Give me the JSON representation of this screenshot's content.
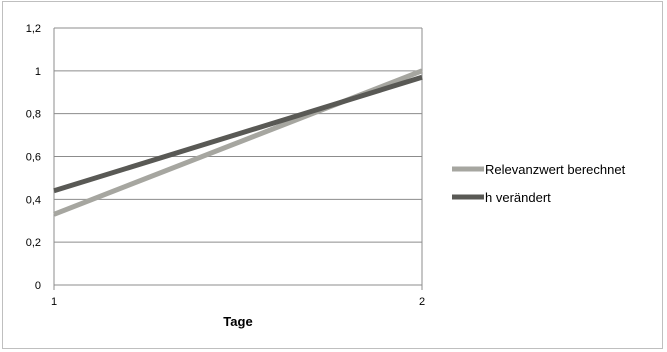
{
  "chart_data": {
    "type": "line",
    "x": [
      1,
      2
    ],
    "x_tick_labels": [
      "1",
      "2"
    ],
    "xlabel": "Tage",
    "ylabel": "",
    "ylim": [
      0,
      1.2
    ],
    "y_ticks": [
      0,
      0.2,
      0.4,
      0.6,
      0.8,
      1,
      1.2
    ],
    "y_tick_labels": [
      "0",
      "0,2",
      "0,4",
      "0,6",
      "0,8",
      "1",
      "1,2"
    ],
    "grid": "horizontal",
    "legend_position": "right",
    "series": [
      {
        "name": "Relevanzwert berechnet",
        "values": [
          0.33,
          1.0
        ],
        "color": "#a6a6a0"
      },
      {
        "name": "h verändert",
        "values": [
          0.44,
          0.97
        ],
        "color": "#595955"
      }
    ]
  }
}
